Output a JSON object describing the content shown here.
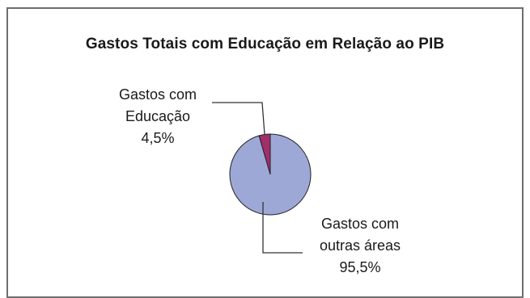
{
  "chart_data": {
    "type": "pie",
    "title": "Gastos Totais com Educação em Relação ao PIB",
    "slices": [
      {
        "label_line1": "Gastos com",
        "label_line2": "Educação",
        "value_label": "4,5%",
        "value": 4.5,
        "color": "#a0306a"
      },
      {
        "label_line1": "Gastos com",
        "label_line2": "outras áreas",
        "value_label": "95,5%",
        "value": 95.5,
        "color": "#9ea8d6"
      }
    ],
    "start_angle_deg": 0,
    "direction": "counterclockwise",
    "legend": "none"
  }
}
